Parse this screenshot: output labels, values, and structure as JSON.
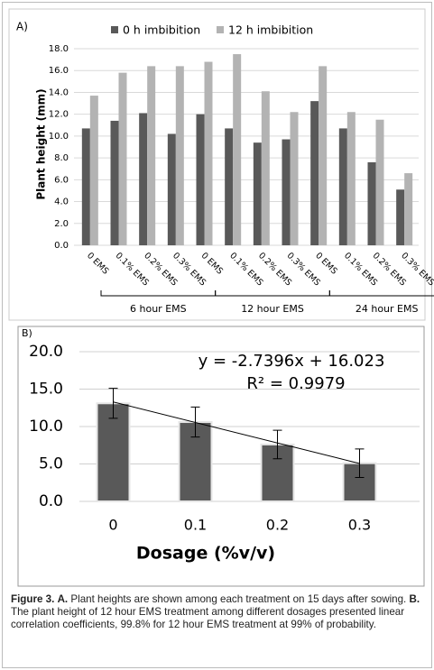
{
  "chart_data": [
    {
      "type": "bar",
      "panel": "A)",
      "ylabel": "Plant height (mm)",
      "categories": [
        "0 EMS",
        "0.1% EMS",
        "0.2% EMS",
        "0.3% EMS",
        "0 EMS",
        "0.1% EMS",
        "0.2% EMS",
        "0.3% EMS",
        "0 EMS",
        "0.1% EMS",
        "0.2% EMS",
        "0.3% EMS"
      ],
      "groups": [
        "6 hour EMS",
        "12 hour EMS",
        "24 hour EMS"
      ],
      "series": [
        {
          "name": "0 h imbibition",
          "color": "#595959",
          "values": [
            10.7,
            11.4,
            12.1,
            10.2,
            12.0,
            10.7,
            9.4,
            9.7,
            13.2,
            10.7,
            7.6,
            5.1
          ]
        },
        {
          "name": "12 h imbibition",
          "color": "#b3b3b3",
          "values": [
            13.7,
            15.8,
            16.4,
            16.4,
            16.8,
            17.5,
            14.1,
            12.2,
            16.4,
            12.2,
            11.5,
            6.6
          ]
        }
      ],
      "ylim": [
        0,
        18
      ],
      "yticks": [
        {
          "value": 0,
          "label": "0.0"
        },
        {
          "value": 2,
          "label": "2.0"
        },
        {
          "value": 4,
          "label": "4.0"
        },
        {
          "value": 6,
          "label": "6.0"
        },
        {
          "value": 8,
          "label": "8.0"
        },
        {
          "value": 10,
          "label": "10.0"
        },
        {
          "value": 12,
          "label": "12.0"
        },
        {
          "value": 14,
          "label": "14.0"
        },
        {
          "value": 16,
          "label": "16.0"
        },
        {
          "value": 18,
          "label": "18.0"
        }
      ],
      "grid": true,
      "legend": "top"
    },
    {
      "type": "bar",
      "panel": "B)",
      "xlabel": "Dosage (%v/v)",
      "categories": [
        "0",
        "0.1",
        "0.2",
        "0.3"
      ],
      "values": [
        13.1,
        10.6,
        7.6,
        5.1
      ],
      "errors": [
        2.0,
        2.0,
        1.9,
        1.9
      ],
      "color": "#595959",
      "trendline": {
        "label": "y = -2.7396x + 16.023",
        "slope": -2.7396,
        "intercept": 16.023,
        "r2_label": "R² = 0.9979"
      },
      "ylim": [
        0,
        20
      ],
      "yticks": [
        {
          "value": 0,
          "label": "0.0"
        },
        {
          "value": 5,
          "label": "5.0"
        },
        {
          "value": 10,
          "label": "10.0"
        },
        {
          "value": 15,
          "label": "15.0"
        },
        {
          "value": 20,
          "label": "20.0"
        }
      ],
      "grid": true
    }
  ],
  "caption": {
    "figure": "Figure 3.",
    "parts": [
      {
        "label": "A.",
        "text": "Plant heights are shown among each treatment on 15 days after sowing."
      },
      {
        "label": "B.",
        "text": "The plant height of 12 hour EMS treatment among different dosages presented linear correlation coefficients, 99.8% for 12 hour EMS treatment at 99% of probability."
      }
    ]
  }
}
